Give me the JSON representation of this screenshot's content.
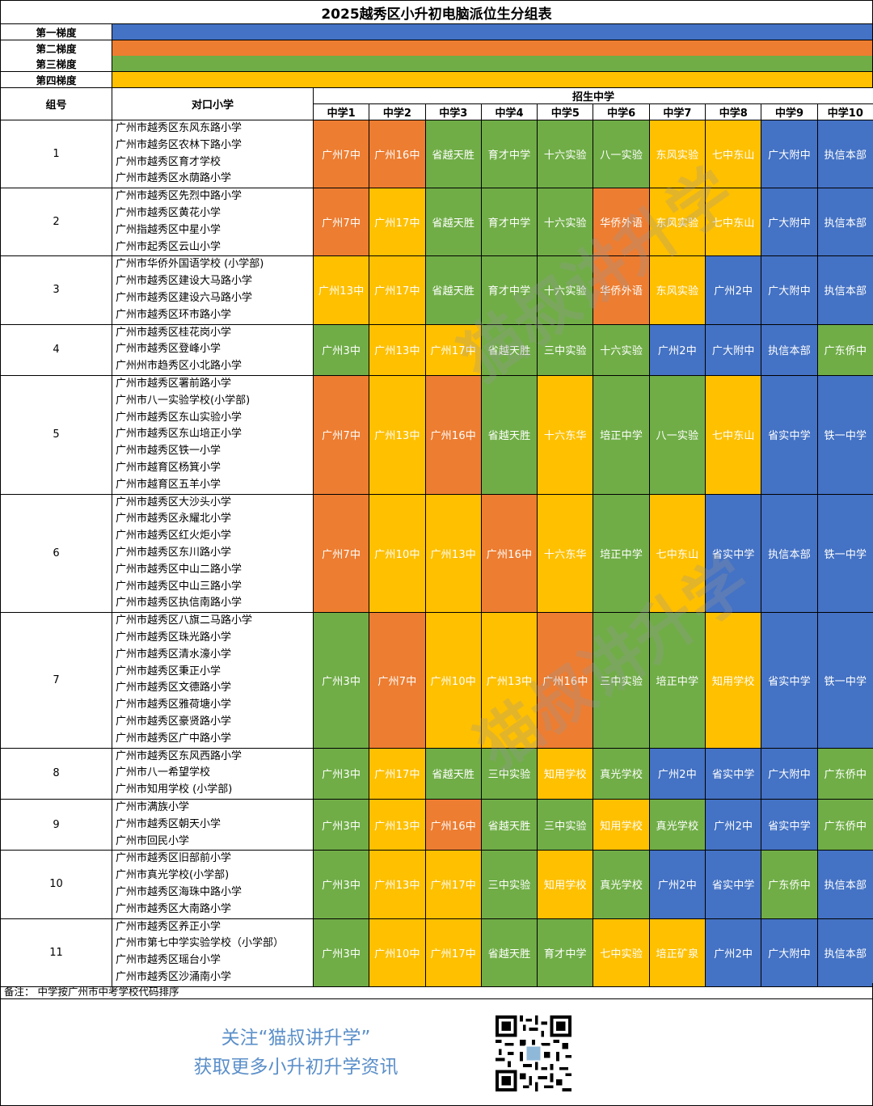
{
  "title": "2025越秀区小升初电脑派位生分组表",
  "tiers": [
    {
      "label": "第一梯度",
      "color": "#4472c4"
    },
    {
      "label": "第二梯度",
      "color": "#ed7d31"
    },
    {
      "label": "第三梯度",
      "color": "#70ad47"
    },
    {
      "label": "第四梯度",
      "color": "#ffc000"
    }
  ],
  "header": {
    "group": "组号",
    "primary": "对口小学",
    "enroll": "招生中学",
    "schools": [
      "中学1",
      "中学2",
      "中学3",
      "中学4",
      "中学5",
      "中学6",
      "中学7",
      "中学8",
      "中学9",
      "中学10"
    ]
  },
  "groups": [
    {
      "id": "1",
      "primary": [
        "广州市越秀区东风东路小学",
        "广州市越务区农林下路小学",
        "广州市越秀区育才学校",
        "广州市越秀区水荫路小学"
      ],
      "cells": [
        [
          "广州7中",
          "g2"
        ],
        [
          "广州16中",
          "g2"
        ],
        [
          "省越天胜",
          "g3"
        ],
        [
          "育才中学",
          "g3"
        ],
        [
          "十六实验",
          "g3"
        ],
        [
          "八一实验",
          "g3"
        ],
        [
          "东风实验",
          "g4"
        ],
        [
          "七中东山",
          "g4"
        ],
        [
          "广大附中",
          "g1"
        ],
        [
          "执信本部",
          "g1"
        ]
      ]
    },
    {
      "id": "2",
      "primary": [
        "广州市越秀区先烈中路小学",
        "广州市越秀区黄花小学",
        "广州指越秀区中星小学",
        "广州市起秀区云山小学"
      ],
      "cells": [
        [
          "广州7中",
          "g2"
        ],
        [
          "广州17中",
          "g4"
        ],
        [
          "省越天胜",
          "g3"
        ],
        [
          "育才中学",
          "g3"
        ],
        [
          "十六实验",
          "g3"
        ],
        [
          "华侨外语",
          "g2"
        ],
        [
          "东风实验",
          "g4"
        ],
        [
          "七中东山",
          "g4"
        ],
        [
          "广大附中",
          "g1"
        ],
        [
          "执信本部",
          "g1"
        ]
      ]
    },
    {
      "id": "3",
      "primary": [
        "广州市华侨外国语学校 (小学部)",
        "广州市越秀区建设大马路小学",
        "广州市越秀区建设六马路小学",
        "广州市越秀区环市路小学"
      ],
      "cells": [
        [
          "广州13中",
          "g4"
        ],
        [
          "广州17中",
          "g4"
        ],
        [
          "省越天胜",
          "g3"
        ],
        [
          "育才中学",
          "g3"
        ],
        [
          "十六实验",
          "g3"
        ],
        [
          "华侨外语",
          "g2"
        ],
        [
          "东风实验",
          "g4"
        ],
        [
          "广州2中",
          "g1"
        ],
        [
          "广大附中",
          "g1"
        ],
        [
          "执信本部",
          "g1"
        ]
      ]
    },
    {
      "id": "4",
      "primary": [
        "广州市越秀区桂花岗小学",
        "广州市越秀区登峰小学",
        "广州州市趋秀区小北路小学"
      ],
      "cells": [
        [
          "广州3中",
          "g3"
        ],
        [
          "广州13中",
          "g4"
        ],
        [
          "广州17中",
          "g4"
        ],
        [
          "省越天胜",
          "g3"
        ],
        [
          "三中实验",
          "g3"
        ],
        [
          "十六实验",
          "g3"
        ],
        [
          "广州2中",
          "g1"
        ],
        [
          "广大附中",
          "g1"
        ],
        [
          "执信本部",
          "g1"
        ],
        [
          "广东侨中",
          "g3"
        ]
      ]
    },
    {
      "id": "5",
      "primary": [
        "广州市越秀区署前路小学",
        "广州市八一实验学校(小学部)",
        "广州市越秀区东山实验小学",
        "广州市越秀区东山培正小学",
        "广州市越秀区铁一小学",
        "广州市越育区杨箕小学",
        "广州市越育区五羊小学"
      ],
      "cells": [
        [
          "广州7中",
          "g2"
        ],
        [
          "广州13中",
          "g4"
        ],
        [
          "广州16中",
          "g2"
        ],
        [
          "省越天胜",
          "g3"
        ],
        [
          "十六东华",
          "g4"
        ],
        [
          "培正中学",
          "g3"
        ],
        [
          "八一实验",
          "g3"
        ],
        [
          "七中东山",
          "g4"
        ],
        [
          "省实中学",
          "g1"
        ],
        [
          "铁一中学",
          "g1"
        ]
      ]
    },
    {
      "id": "6",
      "primary": [
        "广州市越秀区大沙头小学",
        "广州市越秀区永耀北小学",
        "广州市越秀区红火炬小学",
        "广州市越秀区东川路小学",
        "广州市越秀区中山二路小学",
        "广州市越秀区中山三路小学",
        "广州市越秀区执信南路小学"
      ],
      "cells": [
        [
          "广州7中",
          "g2"
        ],
        [
          "广州10中",
          "g4"
        ],
        [
          "广州13中",
          "g4"
        ],
        [
          "广州16中",
          "g2"
        ],
        [
          "十六东华",
          "g4"
        ],
        [
          "培正中学",
          "g3"
        ],
        [
          "七中东山",
          "g4"
        ],
        [
          "省实中学",
          "g1"
        ],
        [
          "执信本部",
          "g1"
        ],
        [
          "铁一中学",
          "g1"
        ]
      ]
    },
    {
      "id": "7",
      "primary": [
        "广州市越秀区八旗二马路小学",
        "广州市越秀区珠光路小学",
        "广州市越秀区清水濠小学",
        "广州市越秀区秉正小学",
        "广州市越秀区文德路小学",
        "广州市越秀区雅荷塘小学",
        "广州市越秀区豪贤路小学",
        "广州市越秀区广中路小学"
      ],
      "cells": [
        [
          "广州3中",
          "g3"
        ],
        [
          "广州7中",
          "g2"
        ],
        [
          "广州10中",
          "g4"
        ],
        [
          "广州13中",
          "g4"
        ],
        [
          "广州16中",
          "g2"
        ],
        [
          "三中实验",
          "g3"
        ],
        [
          "培正中学",
          "g3"
        ],
        [
          "知用学校",
          "g4"
        ],
        [
          "省实中学",
          "g1"
        ],
        [
          "铁一中学",
          "g1"
        ]
      ]
    },
    {
      "id": "8",
      "primary": [
        "广州市越秀区东风西路小学",
        "广州市八一希望学校",
        "广州市知用学校 (小学部)"
      ],
      "cells": [
        [
          "广州3中",
          "g3"
        ],
        [
          "广州17中",
          "g4"
        ],
        [
          "省越天胜",
          "g3"
        ],
        [
          "三中实验",
          "g3"
        ],
        [
          "知用学校",
          "g4"
        ],
        [
          "真光学校",
          "g3"
        ],
        [
          "广州2中",
          "g1"
        ],
        [
          "省实中学",
          "g1"
        ],
        [
          "广大附中",
          "g1"
        ],
        [
          "广东侨中",
          "g3"
        ]
      ]
    },
    {
      "id": "9",
      "primary": [
        "广州市满族小学",
        "广州市越秀区朝天小学",
        "广州市回民小学"
      ],
      "cells": [
        [
          "广州3中",
          "g3"
        ],
        [
          "广州13中",
          "g4"
        ],
        [
          "广州16中",
          "g2"
        ],
        [
          "省越天胜",
          "g3"
        ],
        [
          "三中实验",
          "g3"
        ],
        [
          "知用学校",
          "g4"
        ],
        [
          "真光学校",
          "g3"
        ],
        [
          "广州2中",
          "g1"
        ],
        [
          "省实中学",
          "g1"
        ],
        [
          "广东侨中",
          "g3"
        ]
      ]
    },
    {
      "id": "10",
      "primary": [
        "广州市越秀区旧部前小学",
        "广州市真光学校(小学部)",
        "广州市越秀区海珠中路小学",
        "广州市越秀区大南路小学"
      ],
      "cells": [
        [
          "广州3中",
          "g3"
        ],
        [
          "广州13中",
          "g4"
        ],
        [
          "广州17中",
          "g4"
        ],
        [
          "三中实验",
          "g3"
        ],
        [
          "知用学校",
          "g4"
        ],
        [
          "真光学校",
          "g3"
        ],
        [
          "广州2中",
          "g1"
        ],
        [
          "省实中学",
          "g1"
        ],
        [
          "广东侨中",
          "g3"
        ],
        [
          "执信本部",
          "g1"
        ]
      ]
    },
    {
      "id": "11",
      "primary": [
        "广州市越秀区养正小学",
        "广州市第七中学实验学校（小学部）",
        "广州市越秀区瑶台小学",
        "广州市越秀区沙涌南小学"
      ],
      "cells": [
        [
          "广州3中",
          "g3"
        ],
        [
          "广州10中",
          "g4"
        ],
        [
          "广州17中",
          "g4"
        ],
        [
          "省越天胜",
          "g3"
        ],
        [
          "育才中学",
          "g3"
        ],
        [
          "七中实验",
          "g4"
        ],
        [
          "培正矿泉",
          "g4"
        ],
        [
          "广州2中",
          "g1"
        ],
        [
          "广大附中",
          "g1"
        ],
        [
          "执信本部",
          "g1"
        ]
      ]
    }
  ],
  "note": "备注：  中学按广州市中考学校代码排序",
  "promo": {
    "line1": "关注“猫叔讲升学”",
    "line2": "获取更多小升初升学资讯",
    "color": "#5b8fc9"
  },
  "qr_code": "qr-code-icon"
}
